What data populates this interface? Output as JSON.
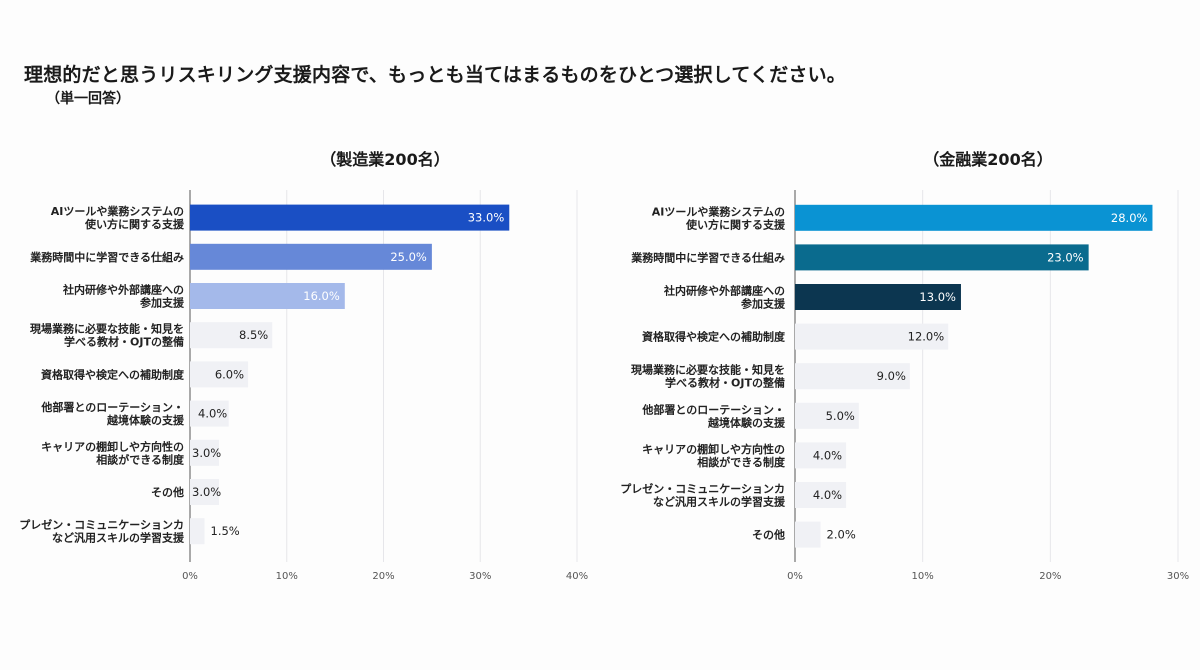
{
  "title": "理想的だと思うリスキリング支援内容で、もっとも当てはまるものをひとつ選択してください。",
  "subtitle": "（単一回答）",
  "chart_data": [
    {
      "type": "bar",
      "orientation": "horizontal",
      "title": "（製造業200名）",
      "categories": [
        "AIツールや業務システムの\n使い方に関する支援",
        "業務時間中に学習できる仕組み",
        "社内研修や外部講座への\n参加支援",
        "現場業務に必要な技能・知見を\n学べる教材・OJTの整備",
        "資格取得や検定への補助制度",
        "他部署とのローテーション・\n越境体験の支援",
        "キャリアの棚卸しや方向性の\n相談ができる制度",
        "その他",
        "プレゼン・コミュニケーションカ\nなど汎用スキルの学習支援"
      ],
      "values": [
        33.0,
        25.0,
        16.0,
        8.5,
        6.0,
        4.0,
        3.0,
        3.0,
        1.5
      ],
      "value_labels": [
        "33.0%",
        "25.0%",
        "16.0%",
        "8.5%",
        "6.0%",
        "4.0%",
        "3.0%",
        "3.0%",
        "1.5%"
      ],
      "colors": [
        "#1a4fc4",
        "#6688d8",
        "#a4b9ea",
        "#f0f1f5",
        "#f0f1f5",
        "#f0f1f5",
        "#f0f1f5",
        "#f0f1f5",
        "#f0f1f5"
      ],
      "xlim": [
        0,
        40
      ],
      "ticks": [
        0,
        10,
        20,
        30,
        40
      ],
      "tick_labels": [
        "0%",
        "10%",
        "20%",
        "30%",
        "40%"
      ],
      "grid": true
    },
    {
      "type": "bar",
      "orientation": "horizontal",
      "title": "（金融業200名）",
      "categories": [
        "AIツールや業務システムの\n使い方に関する支援",
        "業務時間中に学習できる仕組み",
        "社内研修や外部講座への\n参加支援",
        "資格取得や検定への補助制度",
        "現場業務に必要な技能・知見を\n学べる教材・OJTの整備",
        "他部署とのローテーション・\n越境体験の支援",
        "キャリアの棚卸しや方向性の\n相談ができる制度",
        "プレゼン・コミュニケーションカ\nなど汎用スキルの学習支援",
        "その他"
      ],
      "values": [
        28.0,
        23.0,
        13.0,
        12.0,
        9.0,
        5.0,
        4.0,
        4.0,
        2.0
      ],
      "value_labels": [
        "28.0%",
        "23.0%",
        "13.0%",
        "12.0%",
        "9.0%",
        "5.0%",
        "4.0%",
        "4.0%",
        "2.0%"
      ],
      "colors": [
        "#0a93d3",
        "#0a6b8e",
        "#0c3650",
        "#f0f1f5",
        "#f0f1f5",
        "#f0f1f5",
        "#f0f1f5",
        "#f0f1f5",
        "#f0f1f5"
      ],
      "xlim": [
        0,
        30
      ],
      "ticks": [
        0,
        10,
        20,
        30
      ],
      "tick_labels": [
        "0%",
        "10%",
        "20%",
        "30%"
      ],
      "grid": true
    }
  ]
}
